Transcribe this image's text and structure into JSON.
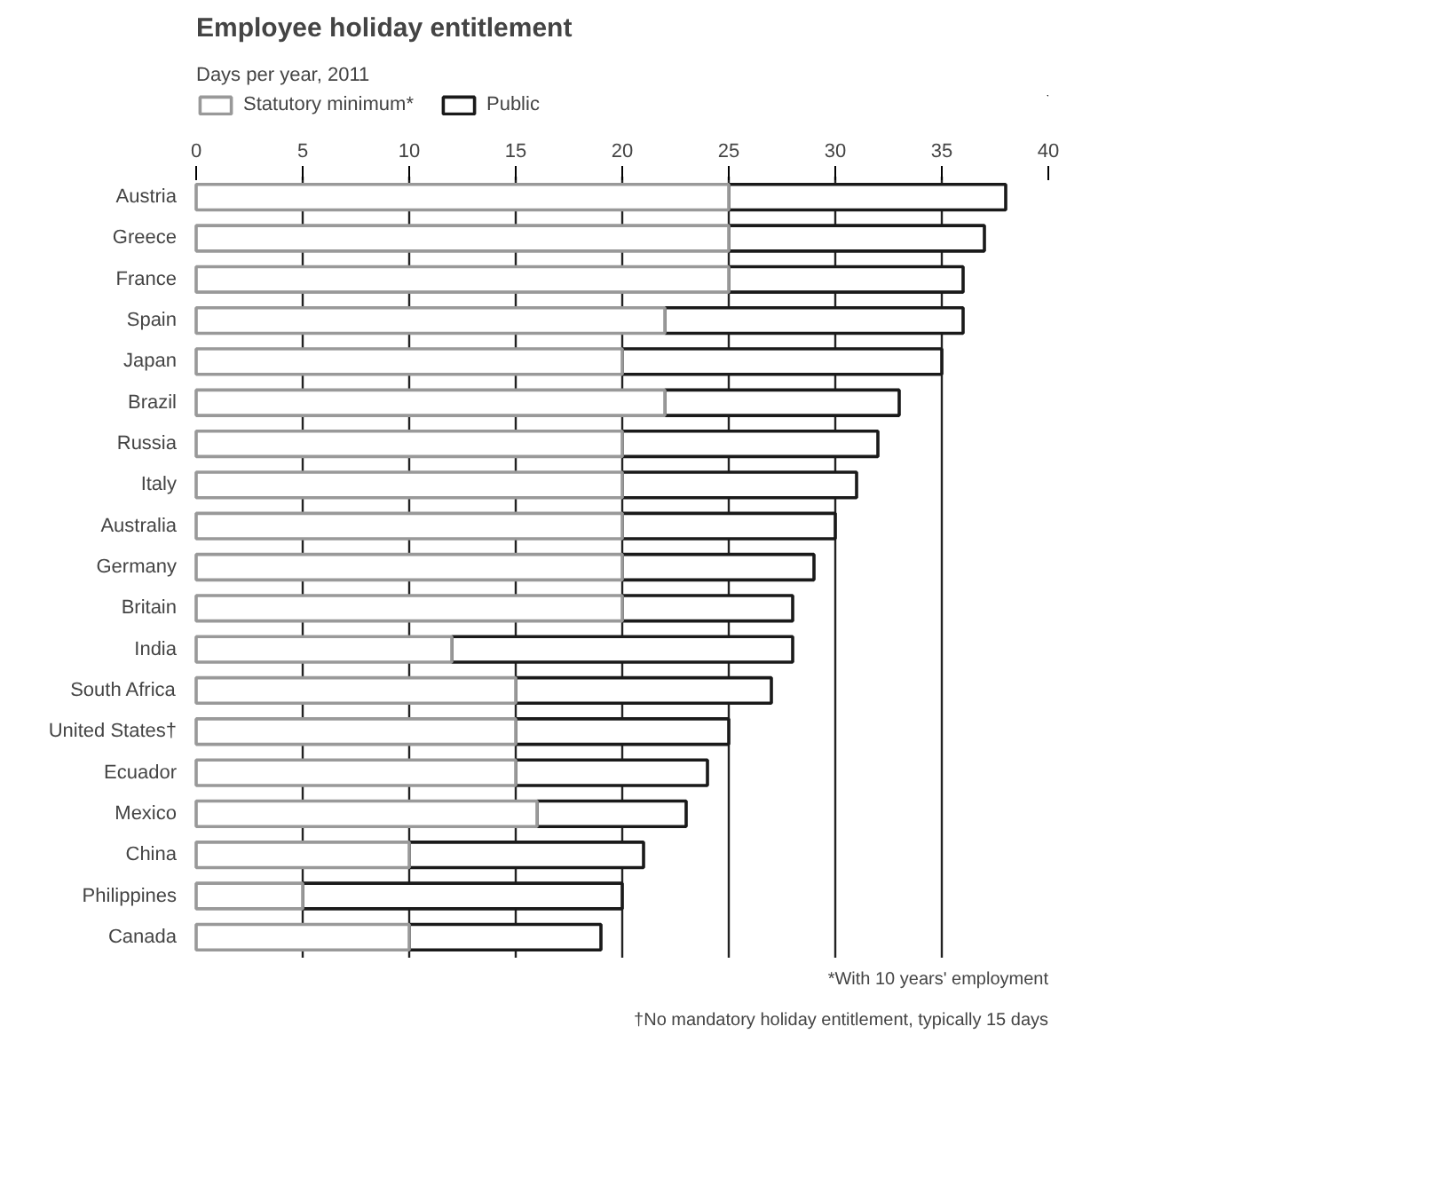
{
  "chart_data": {
    "type": "bar",
    "orientation": "horizontal",
    "stacked": true,
    "title": "Employee holiday entitlement",
    "subtitle": "Days per year, 2011",
    "categories": [
      "Austria",
      "Greece",
      "France",
      "Spain",
      "Japan",
      "Brazil",
      "Russia",
      "Italy",
      "Australia",
      "Germany",
      "Britain",
      "India",
      "South Africa",
      "United States†",
      "Ecuador",
      "Mexico",
      "China",
      "Philippines",
      "Canada"
    ],
    "series": [
      {
        "name": "Statutory minimum*",
        "color": "#999999",
        "values": [
          25,
          25,
          25,
          22,
          20,
          22,
          20,
          20,
          20,
          20,
          20,
          12,
          15,
          15,
          15,
          16,
          10,
          5,
          10
        ]
      },
      {
        "name": "Public",
        "color": "#1a1a1a",
        "values": [
          13,
          12,
          11,
          14,
          15,
          11,
          12,
          11,
          10,
          9,
          8,
          16,
          12,
          10,
          9,
          7,
          11,
          15,
          9
        ]
      }
    ],
    "xlim": [
      0,
      40
    ],
    "xticks": [
      0,
      5,
      10,
      15,
      20,
      25,
      30,
      35,
      40
    ],
    "grid": "x",
    "legend": "top",
    "annotations": [
      "*With 10 years' employment",
      "†No mandatory holiday entitlement, typically 15 days"
    ]
  }
}
